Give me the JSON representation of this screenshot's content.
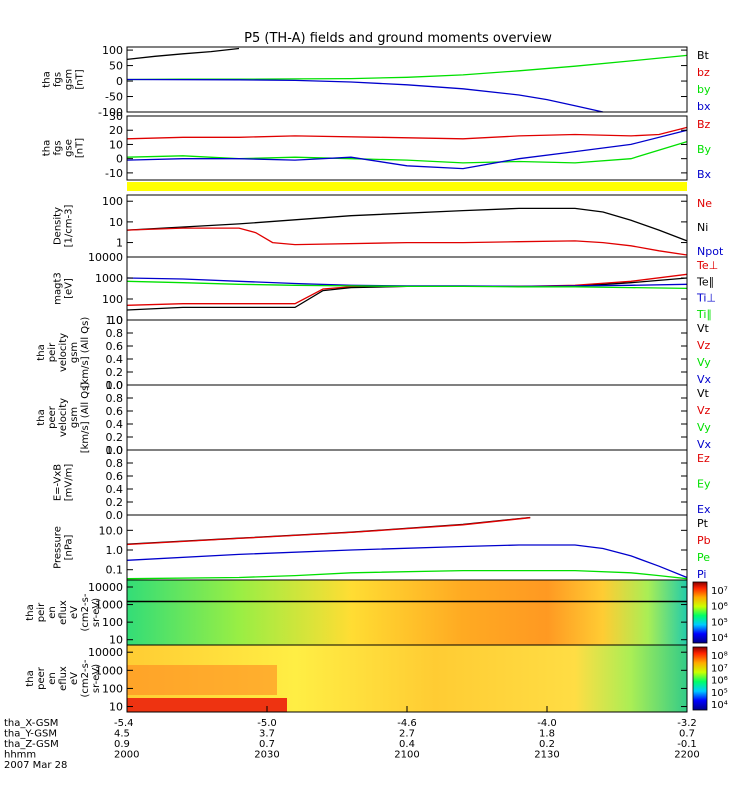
{
  "title": "P5 (TH-A) fields and ground moments overview",
  "colors": {
    "black": "#000000",
    "red": "#e00000",
    "green": "#00e000",
    "blue": "#0000cc",
    "yellow": "#ffff00"
  },
  "chart_data": [
    {
      "type": "line",
      "panel": "fgs-gsm",
      "ylabel_lines": [
        "tha",
        "fgs",
        "gsm",
        "[nT]"
      ],
      "ylim": [
        -100,
        110
      ],
      "yticks": [
        "100",
        "50",
        "0",
        "-50",
        "-100"
      ],
      "legend": [
        {
          "label": "Bt",
          "color": "black"
        },
        {
          "label": "bz",
          "color": "red"
        },
        {
          "label": "by",
          "color": "green"
        },
        {
          "label": "bx",
          "color": "blue"
        }
      ],
      "series": [
        {
          "name": "Bt",
          "color": "black",
          "x": [
            0,
            0.05,
            0.1,
            0.15,
            0.2
          ],
          "y": [
            70,
            80,
            88,
            95,
            105
          ]
        },
        {
          "name": "by",
          "color": "green",
          "x": [
            0,
            0.1,
            0.2,
            0.3,
            0.4,
            0.5,
            0.6,
            0.7,
            0.8,
            0.9,
            1.0
          ],
          "y": [
            5,
            6,
            6,
            7,
            8,
            12,
            20,
            33,
            48,
            65,
            83
          ]
        },
        {
          "name": "bx",
          "color": "blue",
          "x": [
            0,
            0.2,
            0.3,
            0.4,
            0.5,
            0.6,
            0.7,
            0.75,
            0.8,
            0.85
          ],
          "y": [
            5,
            4,
            2,
            -3,
            -12,
            -25,
            -45,
            -60,
            -80,
            -100
          ]
        }
      ]
    },
    {
      "type": "line",
      "panel": "fgs-gse",
      "ylabel_lines": [
        "tha",
        "fgs",
        "gse",
        "[nT]"
      ],
      "ylim": [
        -15,
        30
      ],
      "yticks": [
        "30",
        "20",
        "10",
        "0",
        "-10"
      ],
      "legend": [
        {
          "label": "Bz",
          "color": "red"
        },
        {
          "label": "By",
          "color": "green"
        },
        {
          "label": "Bx",
          "color": "blue"
        }
      ],
      "series": [
        {
          "name": "Bz",
          "color": "red",
          "x": [
            0,
            0.1,
            0.2,
            0.3,
            0.45,
            0.6,
            0.7,
            0.8,
            0.9,
            0.95,
            1.0
          ],
          "y": [
            14,
            15,
            15,
            16,
            15,
            14,
            16,
            17,
            16,
            17,
            22
          ]
        },
        {
          "name": "By",
          "color": "green",
          "x": [
            0,
            0.1,
            0.2,
            0.3,
            0.4,
            0.5,
            0.6,
            0.7,
            0.8,
            0.9,
            1.0
          ],
          "y": [
            1,
            2,
            0,
            1,
            0,
            -1,
            -3,
            -2,
            -3,
            0,
            12
          ]
        },
        {
          "name": "Bx",
          "color": "blue",
          "x": [
            0,
            0.1,
            0.2,
            0.3,
            0.4,
            0.5,
            0.6,
            0.7,
            0.8,
            0.9,
            1.0
          ],
          "y": [
            -1,
            0,
            0,
            -1,
            1,
            -5,
            -7,
            0,
            5,
            10,
            20
          ]
        }
      ]
    },
    {
      "type": "area",
      "panel": "density",
      "ylabel_lines": [
        "Density",
        "[1/cm-3]"
      ],
      "scale": "log",
      "ylim": [
        0.2,
        200
      ],
      "yticks": [
        "100",
        "10",
        "1"
      ],
      "legend": [
        {
          "label": "Ne",
          "color": "red"
        },
        {
          "label": "Ni",
          "color": "black"
        },
        {
          "label": "Npot",
          "color": "blue"
        }
      ],
      "series": [
        {
          "name": "Ni",
          "color": "black",
          "x": [
            0,
            0.2,
            0.4,
            0.6,
            0.7,
            0.8,
            0.85,
            0.9,
            0.95,
            1.0
          ],
          "y": [
            4,
            8,
            20,
            35,
            45,
            45,
            30,
            12,
            4,
            1.2
          ]
        },
        {
          "name": "Ne",
          "color": "red",
          "x": [
            0,
            0.1,
            0.2,
            0.23,
            0.26,
            0.3,
            0.5,
            0.6,
            0.7,
            0.8,
            0.85,
            0.9,
            0.95,
            1.0
          ],
          "y": [
            4,
            5,
            5,
            3,
            1,
            0.8,
            1,
            1,
            1.1,
            1.2,
            1,
            0.7,
            0.4,
            0.25
          ]
        }
      ]
    },
    {
      "type": "line",
      "panel": "temperature",
      "ylabel_lines": [
        "magt3",
        "[eV]"
      ],
      "scale": "log",
      "ylim": [
        10,
        10000
      ],
      "yticks": [
        "10000",
        "1000",
        "100",
        "10"
      ],
      "legend": [
        {
          "label": "Te⊥",
          "color": "red"
        },
        {
          "label": "Te∥",
          "color": "black"
        },
        {
          "label": "Ti⊥",
          "color": "blue"
        },
        {
          "label": "Ti∥",
          "color": "green"
        }
      ],
      "series": [
        {
          "name": "Te⊥",
          "color": "red",
          "x": [
            0,
            0.1,
            0.2,
            0.3,
            0.35,
            0.4,
            0.5,
            0.6,
            0.7,
            0.8,
            0.9,
            1.0
          ],
          "y": [
            50,
            60,
            60,
            60,
            300,
            380,
            400,
            400,
            400,
            450,
            700,
            1500
          ]
        },
        {
          "name": "Te∥",
          "color": "black",
          "x": [
            0,
            0.1,
            0.2,
            0.3,
            0.35,
            0.4,
            0.5,
            0.6,
            0.7,
            0.8,
            0.9,
            1.0
          ],
          "y": [
            30,
            40,
            40,
            40,
            250,
            350,
            400,
            400,
            400,
            400,
            600,
            1000
          ]
        },
        {
          "name": "Ti⊥",
          "color": "blue",
          "x": [
            0,
            0.1,
            0.2,
            0.3,
            0.4,
            0.5,
            0.6,
            0.7,
            0.8,
            0.9,
            1.0
          ],
          "y": [
            1000,
            900,
            700,
            550,
            450,
            420,
            420,
            400,
            420,
            450,
            500
          ]
        },
        {
          "name": "Ti∥",
          "color": "green",
          "x": [
            0,
            0.1,
            0.2,
            0.3,
            0.4,
            0.5,
            0.6,
            0.7,
            0.8,
            0.9,
            1.0
          ],
          "y": [
            700,
            600,
            500,
            450,
            420,
            400,
            400,
            380,
            380,
            350,
            320
          ]
        }
      ]
    },
    {
      "type": "line",
      "panel": "peir-velocity",
      "ylabel_lines": [
        "tha",
        "peir",
        "velocity",
        "gsm",
        "[km/s] (All Qs)"
      ],
      "ylim": [
        0,
        1
      ],
      "yticks": [
        "1.0",
        "0.8",
        "0.6",
        "0.4",
        "0.2",
        "0.0"
      ],
      "legend": [
        {
          "label": "Vt",
          "color": "black"
        },
        {
          "label": "Vz",
          "color": "red"
        },
        {
          "label": "Vy",
          "color": "green"
        },
        {
          "label": "Vx",
          "color": "blue"
        }
      ],
      "series": []
    },
    {
      "type": "line",
      "panel": "peer-velocity",
      "ylabel_lines": [
        "tha",
        "peer",
        "velocity",
        "gsm",
        "[km/s] (All Qs)"
      ],
      "ylim": [
        0,
        1
      ],
      "yticks": [
        "1.0",
        "0.8",
        "0.6",
        "0.4",
        "0.2",
        "0.0"
      ],
      "legend": [
        {
          "label": "Vt",
          "color": "black"
        },
        {
          "label": "Vz",
          "color": "red"
        },
        {
          "label": "Vy",
          "color": "green"
        },
        {
          "label": "Vx",
          "color": "blue"
        }
      ],
      "series": []
    },
    {
      "type": "line",
      "panel": "efield",
      "ylabel_lines": [
        "E=-VxB",
        "[mV/m]"
      ],
      "ylim": [
        0,
        1
      ],
      "yticks": [
        "1.0",
        "0.8",
        "0.6",
        "0.4",
        "0.2",
        "0.0"
      ],
      "legend": [
        {
          "label": "Ez",
          "color": "red"
        },
        {
          "label": "Ey",
          "color": "green"
        },
        {
          "label": "Ex",
          "color": "blue"
        }
      ],
      "series": []
    },
    {
      "type": "line",
      "panel": "pressure",
      "ylabel_lines": [
        "Pressure",
        "[nPa]"
      ],
      "scale": "log",
      "ylim": [
        0.03,
        60
      ],
      "yticks": [
        "10.0",
        "1.0",
        "0.1"
      ],
      "legend": [
        {
          "label": "Pt",
          "color": "black"
        },
        {
          "label": "Pb",
          "color": "red"
        },
        {
          "label": "Pe",
          "color": "green"
        },
        {
          "label": "Pi",
          "color": "blue"
        }
      ],
      "series": [
        {
          "name": "Pt",
          "color": "black",
          "x": [
            0,
            0.2,
            0.4,
            0.6,
            0.72
          ],
          "y": [
            2,
            4,
            8,
            20,
            45
          ]
        },
        {
          "name": "Pb",
          "color": "red",
          "x": [
            0,
            0.2,
            0.4,
            0.6,
            0.72
          ],
          "y": [
            1.9,
            3.9,
            7.8,
            19,
            44
          ]
        },
        {
          "name": "Pi",
          "color": "blue",
          "x": [
            0,
            0.2,
            0.4,
            0.6,
            0.7,
            0.8,
            0.85,
            0.9,
            0.95,
            1.0
          ],
          "y": [
            0.3,
            0.6,
            1,
            1.5,
            1.8,
            1.8,
            1.2,
            0.5,
            0.15,
            0.04
          ]
        },
        {
          "name": "Pe",
          "color": "green",
          "x": [
            0,
            0.2,
            0.3,
            0.4,
            0.6,
            0.8,
            0.9,
            0.95,
            1.0
          ],
          "y": [
            0.035,
            0.04,
            0.05,
            0.07,
            0.09,
            0.09,
            0.07,
            0.05,
            0.035
          ]
        }
      ]
    },
    {
      "type": "heatmap",
      "panel": "peir-en-eflux",
      "ylabel_lines": [
        "tha",
        "peir",
        "en",
        "eflux",
        "eV",
        "(cm2-s-",
        "sr-eV)"
      ],
      "scale": "log",
      "ylim": [
        5,
        25000
      ],
      "yticks": [
        "10000",
        "1000",
        "100",
        "10"
      ],
      "colorbar_labels": [
        "10⁷",
        "10⁶",
        "10⁵",
        "10⁴"
      ],
      "reference_line_y": 1500
    },
    {
      "type": "heatmap",
      "panel": "peer-en-eflux",
      "ylabel_lines": [
        "tha",
        "peer",
        "en",
        "eflux",
        "eV",
        "(cm2-s-",
        "sr-eV)"
      ],
      "scale": "log",
      "ylim": [
        5,
        25000
      ],
      "yticks": [
        "10000",
        "1000",
        "100",
        "10"
      ],
      "colorbar_labels": [
        "10⁸",
        "10⁷",
        "10⁶",
        "10⁵",
        "10⁴"
      ]
    }
  ],
  "xaxis": {
    "rows": [
      {
        "label": "tha_X-GSM",
        "values": [
          "-5.4",
          "-5.0",
          "-4.6",
          "-4.0",
          "-3.2"
        ]
      },
      {
        "label": "tha_Y-GSM",
        "values": [
          "4.5",
          "3.7",
          "2.7",
          "1.8",
          "0.7"
        ]
      },
      {
        "label": "tha_Z-GSM",
        "values": [
          "0.9",
          "0.7",
          "0.4",
          "0.2",
          "-0.1"
        ]
      },
      {
        "label": "hhmm",
        "values": [
          "2000",
          "2030",
          "2100",
          "2130",
          "2200"
        ]
      }
    ],
    "date": "2007 Mar 28"
  }
}
